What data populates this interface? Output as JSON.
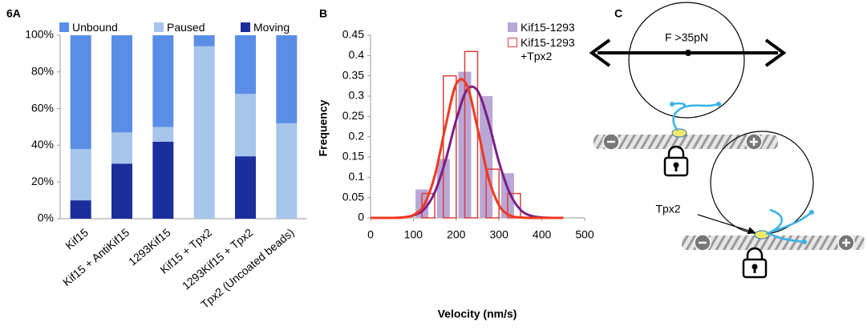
{
  "chart_data": [
    {
      "type": "bar",
      "stacked": true,
      "panel": "6A",
      "categories": [
        "Kif15",
        "Kif15 + AntiKif15",
        "1293Kif15",
        "Kif15 + Tpx2",
        "1293Kif15 + Tpx2",
        "Tpx2 (Uncoated beads)"
      ],
      "series": [
        {
          "name": "Moving",
          "color": "#1c2e9c",
          "values": [
            10,
            30,
            42,
            0,
            34,
            0
          ]
        },
        {
          "name": "Paused",
          "color": "#a7c5eb",
          "values": [
            28,
            17,
            8,
            94,
            34,
            52
          ]
        },
        {
          "name": "Unbound",
          "color": "#5a8ee6",
          "values": [
            62,
            53,
            50,
            6,
            32,
            48
          ]
        }
      ],
      "ylim": [
        0,
        100
      ],
      "yticks": [
        {
          "value": 0,
          "label": "0%"
        },
        {
          "value": 20,
          "label": "20%"
        },
        {
          "value": 40,
          "label": "40%"
        },
        {
          "value": 60,
          "label": "60%"
        },
        {
          "value": 80,
          "label": "80%"
        },
        {
          "value": 100,
          "label": "100%"
        }
      ],
      "grid": false
    },
    {
      "type": "histogram",
      "panel": "B",
      "xlabel": "Velocity (nm/s)",
      "ylabel": "Frequency",
      "series": [
        {
          "name": "Kif15-1293",
          "color": "#b9a7d6",
          "fill": true,
          "bins": [
            95,
            145,
            195,
            245,
            295,
            345
          ],
          "values": [
            0.07,
            0.145,
            0.36,
            0.3,
            0.11
          ]
        },
        {
          "name": "Kif15-1293 +Tpx2",
          "color": "#d9413b",
          "fill": false,
          "bins": [
            110,
            160,
            210,
            260,
            310,
            360
          ],
          "values": [
            0.06,
            0.35,
            0.41,
            0.12,
            0.06
          ]
        }
      ],
      "fits": [
        {
          "color": "#7a1f86",
          "x": [
            0,
            25,
            50,
            75,
            100,
            125,
            150,
            175,
            200,
            225,
            250,
            275,
            300,
            325,
            350,
            375,
            400,
            425,
            450
          ],
          "values": [
            0,
            0,
            0,
            0.001,
            0.006,
            0.021,
            0.063,
            0.141,
            0.241,
            0.315,
            0.313,
            0.238,
            0.137,
            0.061,
            0.02,
            0.005,
            0.001,
            0,
            0
          ]
        },
        {
          "color": "#f03a1e",
          "x": [
            0,
            25,
            50,
            75,
            100,
            125,
            150,
            175,
            200,
            225,
            250,
            275,
            300,
            325,
            350,
            375,
            400,
            425,
            450
          ],
          "values": [
            0,
            0,
            0,
            0.001,
            0.007,
            0.032,
            0.104,
            0.225,
            0.33,
            0.327,
            0.22,
            0.1,
            0.031,
            0.006,
            0.001,
            0,
            0,
            0,
            0
          ]
        }
      ],
      "xlim": [
        0,
        500
      ],
      "xticks": [
        0,
        100,
        200,
        300,
        400,
        500
      ],
      "ylim": [
        0,
        0.45
      ],
      "yticks": [
        0,
        0.05,
        0.1,
        0.15,
        0.2,
        0.25,
        0.3,
        0.35,
        0.4,
        0.45
      ],
      "grid": false
    }
  ],
  "diagram": {
    "label": "C",
    "force": "F >35pN",
    "tpx2": "Tpx2"
  }
}
